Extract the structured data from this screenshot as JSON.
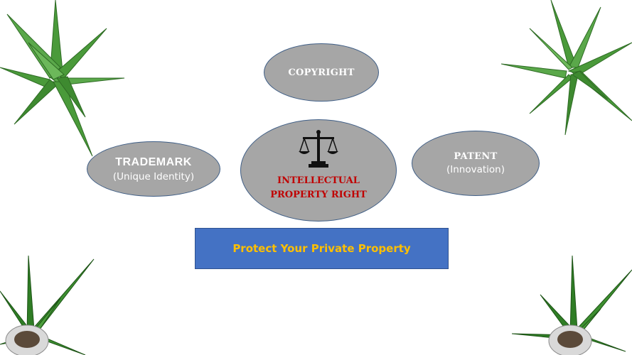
{
  "slide": {
    "background": "#ffffff"
  },
  "nodes": {
    "copyright": {
      "title": "COPYRIGHT"
    },
    "trademark": {
      "title": "TRADEMARK",
      "subtitle": "(Unique Identity)"
    },
    "patent": {
      "title": "PATENT",
      "subtitle": "(Innovation)"
    },
    "center": {
      "line1": "INTELLECTUAL",
      "line2": "PROPERTY RIGHT",
      "icon": "scales-of-justice-icon"
    }
  },
  "banner": {
    "text": "Protect Your Private Property"
  },
  "colors": {
    "bubble_fill": "#a6a6a6",
    "bubble_border": "#3f5e86",
    "center_text": "#c00000",
    "banner_fill": "#4472c4",
    "banner_text": "#ffc000",
    "leaf_green": "#4a9a3a"
  },
  "decorations": [
    "plant-top-left",
    "plant-top-right",
    "potted-plant-bottom-left",
    "potted-plant-bottom-right"
  ]
}
